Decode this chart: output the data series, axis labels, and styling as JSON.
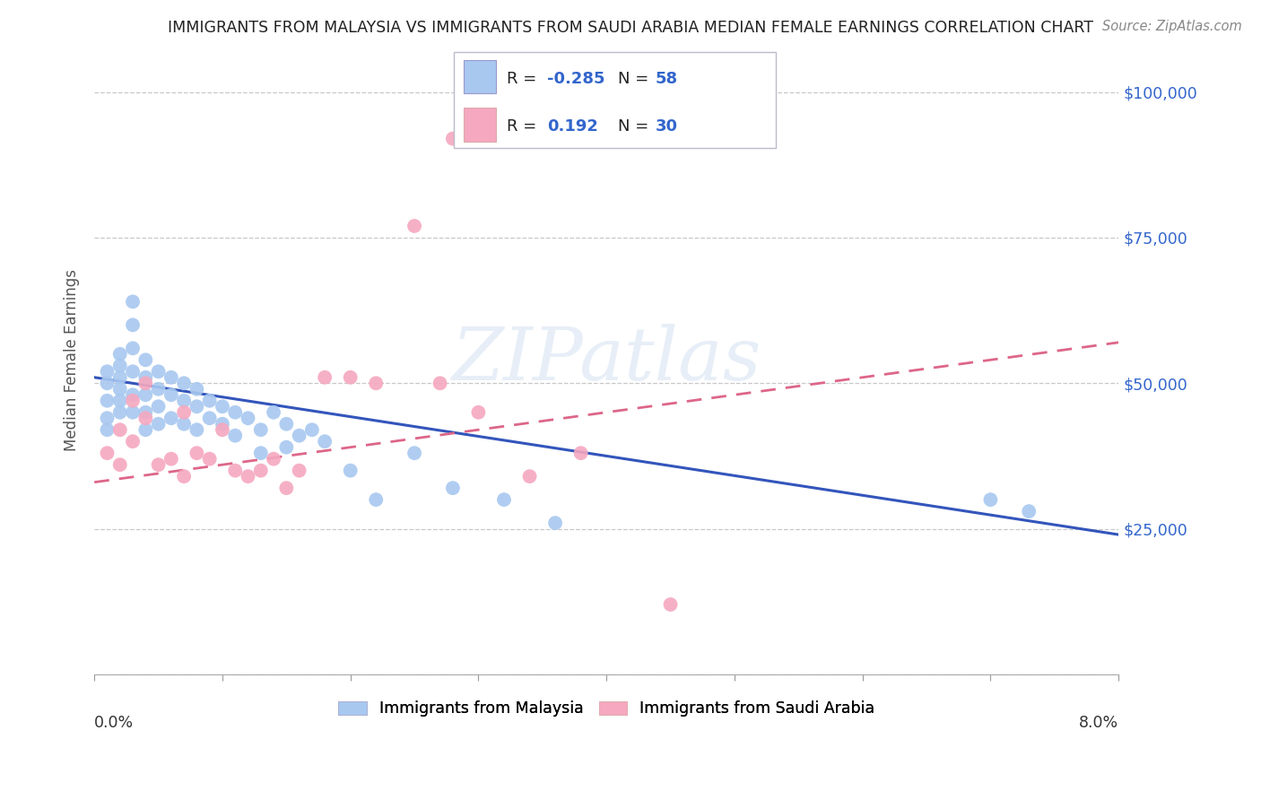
{
  "title": "IMMIGRANTS FROM MALAYSIA VS IMMIGRANTS FROM SAUDI ARABIA MEDIAN FEMALE EARNINGS CORRELATION CHART",
  "source": "Source: ZipAtlas.com",
  "ylabel": "Median Female Earnings",
  "watermark": "ZIPatlas",
  "yticks": [
    0,
    25000,
    50000,
    75000,
    100000
  ],
  "ytick_labels": [
    "",
    "$25,000",
    "$50,000",
    "$75,000",
    "$100,000"
  ],
  "xlim": [
    0.0,
    0.08
  ],
  "ylim": [
    0,
    108000
  ],
  "malaysia_color": "#a8c8f0",
  "saudi_color": "#f5a8c0",
  "malaysia_line_color": "#3355bb",
  "saudi_line_color": "#dd6688",
  "malaysia_scatter_x": [
    0.001,
    0.001,
    0.001,
    0.001,
    0.001,
    0.002,
    0.002,
    0.002,
    0.002,
    0.002,
    0.002,
    0.003,
    0.003,
    0.003,
    0.003,
    0.003,
    0.003,
    0.004,
    0.004,
    0.004,
    0.004,
    0.004,
    0.005,
    0.005,
    0.005,
    0.005,
    0.006,
    0.006,
    0.006,
    0.007,
    0.007,
    0.007,
    0.008,
    0.008,
    0.008,
    0.009,
    0.009,
    0.01,
    0.01,
    0.011,
    0.011,
    0.012,
    0.013,
    0.013,
    0.014,
    0.015,
    0.015,
    0.016,
    0.017,
    0.018,
    0.02,
    0.022,
    0.025,
    0.028,
    0.032,
    0.036,
    0.07,
    0.073
  ],
  "malaysia_scatter_y": [
    52000,
    50000,
    47000,
    44000,
    42000,
    55000,
    53000,
    51000,
    49000,
    47000,
    45000,
    64000,
    60000,
    56000,
    52000,
    48000,
    45000,
    54000,
    51000,
    48000,
    45000,
    42000,
    52000,
    49000,
    46000,
    43000,
    51000,
    48000,
    44000,
    50000,
    47000,
    43000,
    49000,
    46000,
    42000,
    47000,
    44000,
    46000,
    43000,
    45000,
    41000,
    44000,
    42000,
    38000,
    45000,
    43000,
    39000,
    41000,
    42000,
    40000,
    35000,
    30000,
    38000,
    32000,
    30000,
    26000,
    30000,
    28000
  ],
  "saudi_scatter_x": [
    0.001,
    0.002,
    0.002,
    0.003,
    0.003,
    0.004,
    0.004,
    0.005,
    0.006,
    0.007,
    0.007,
    0.008,
    0.009,
    0.01,
    0.011,
    0.012,
    0.013,
    0.014,
    0.015,
    0.016,
    0.018,
    0.02,
    0.022,
    0.025,
    0.027,
    0.028,
    0.03,
    0.034,
    0.038,
    0.045
  ],
  "saudi_scatter_y": [
    38000,
    42000,
    36000,
    47000,
    40000,
    50000,
    44000,
    36000,
    37000,
    45000,
    34000,
    38000,
    37000,
    42000,
    35000,
    34000,
    35000,
    37000,
    32000,
    35000,
    51000,
    51000,
    50000,
    77000,
    50000,
    92000,
    45000,
    34000,
    38000,
    12000
  ],
  "malaysia_line_x0": 0.0,
  "malaysia_line_y0": 51000,
  "malaysia_line_x1": 0.08,
  "malaysia_line_y1": 24000,
  "saudi_line_x0": 0.0,
  "saudi_line_y0": 33000,
  "saudi_line_x1": 0.08,
  "saudi_line_y1": 57000,
  "background_color": "#ffffff",
  "grid_color": "#c8c8c8"
}
